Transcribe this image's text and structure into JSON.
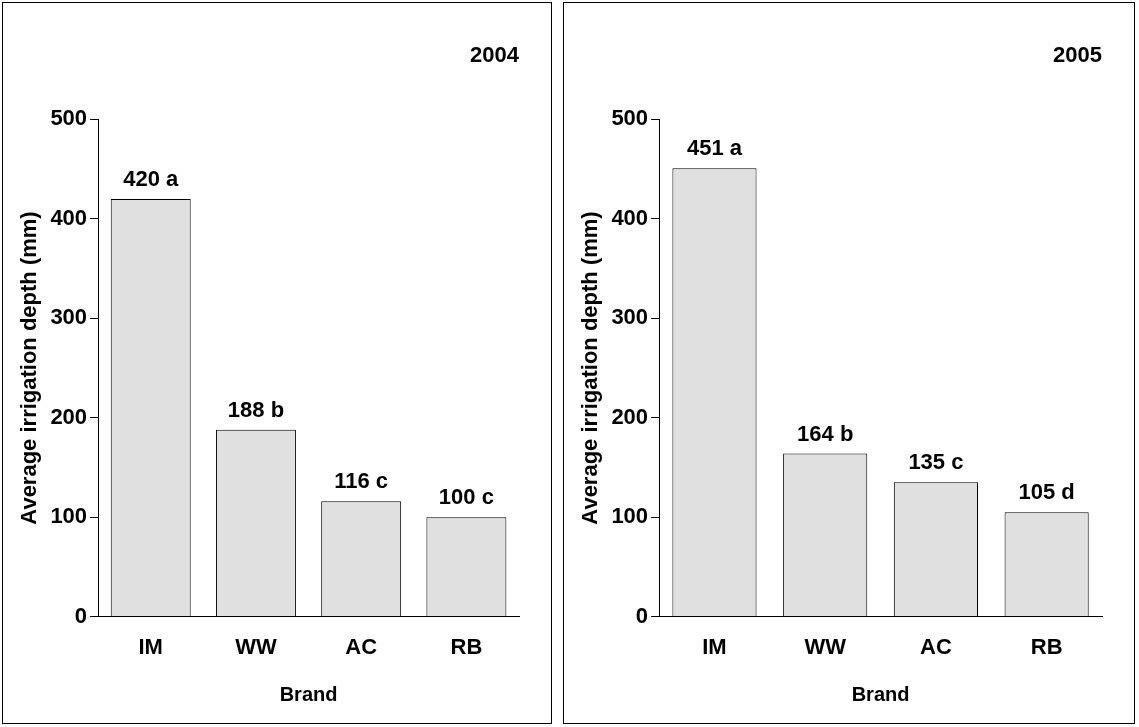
{
  "chart_data": [
    {
      "type": "bar",
      "title": "2004",
      "xlabel": "Brand",
      "ylabel": "Average irrigation depth (mm)",
      "categories": [
        "IM",
        "WW",
        "AC",
        "RB"
      ],
      "values": [
        420,
        188,
        116,
        100
      ],
      "value_labels": [
        "420 a",
        "188 b",
        "116 c",
        "100 c"
      ],
      "color": "#e0e0e0",
      "ylim": [
        0,
        500
      ],
      "yticks": [
        0,
        100,
        200,
        300,
        400,
        500
      ],
      "grid": false,
      "legend": false
    },
    {
      "type": "bar",
      "title": "2005",
      "xlabel": "Brand",
      "ylabel": "Average irrigation depth (mm)",
      "categories": [
        "IM",
        "WW",
        "AC",
        "RB"
      ],
      "values": [
        451,
        164,
        135,
        105
      ],
      "value_labels": [
        "451 a",
        "164 b",
        "135 c",
        "105 d"
      ],
      "color": "#e0e0e0",
      "ylim": [
        0,
        500
      ],
      "yticks": [
        0,
        100,
        200,
        300,
        400,
        500
      ],
      "grid": false,
      "legend": false
    }
  ]
}
